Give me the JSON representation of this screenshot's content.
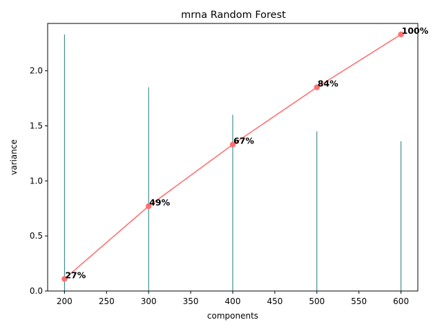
{
  "chart_data": {
    "type": "line",
    "title": "mrna Random Forest",
    "xlabel": "components",
    "ylabel": "variance",
    "xlim": [
      180,
      620
    ],
    "ylim": [
      0,
      2.43
    ],
    "x_ticks": [
      "200",
      "250",
      "300",
      "350",
      "400",
      "450",
      "500",
      "550",
      "600"
    ],
    "y_ticks": [
      "0.0",
      "0.5",
      "1.0",
      "1.5",
      "2.0"
    ],
    "grid": false,
    "legend": "none",
    "series": [
      {
        "type": "line",
        "color": "#ff7070",
        "x": [
          200,
          300,
          400,
          500,
          600
        ],
        "y": [
          0.11,
          0.77,
          1.33,
          1.85,
          2.33
        ],
        "labels": [
          "27%",
          "49%",
          "67%",
          "84%",
          "100%"
        ]
      },
      {
        "type": "bar",
        "color": "#1a7a7a",
        "x": [
          200,
          300,
          400,
          500,
          600
        ],
        "y": [
          2.33,
          1.85,
          1.6,
          1.45,
          1.36
        ]
      }
    ]
  }
}
